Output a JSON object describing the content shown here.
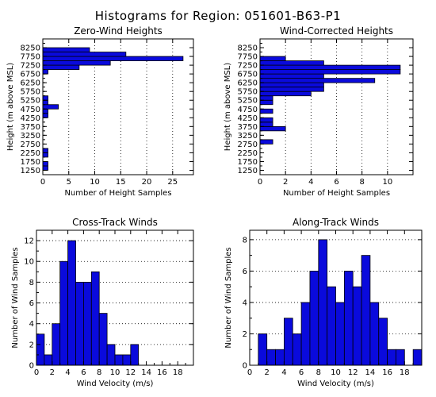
{
  "figure_title": "Histograms for Region: 051601-B63-P1",
  "colors": {
    "bar_fill": "#0a0adc",
    "bar_edge": "#000000",
    "grid": "#000000"
  },
  "chart_data": [
    {
      "type": "bar",
      "orientation": "horizontal",
      "title": "Zero-Wind Heights",
      "xlabel": "Number of Height Samples",
      "ylabel": "Height (m above MSL)",
      "xlim": [
        0,
        29
      ],
      "ylim": [
        1000,
        8750
      ],
      "xticks": [
        0,
        5,
        10,
        15,
        20,
        25
      ],
      "yticks": [
        1250,
        1750,
        2250,
        2750,
        3250,
        3750,
        4250,
        4750,
        5250,
        5750,
        6250,
        6750,
        7250,
        7750,
        8250
      ],
      "bin_width": 250,
      "bins": [
        {
          "y": 1250,
          "value": 1
        },
        {
          "y": 1500,
          "value": 1
        },
        {
          "y": 2000,
          "value": 1
        },
        {
          "y": 2250,
          "value": 1
        },
        {
          "y": 4250,
          "value": 1
        },
        {
          "y": 4500,
          "value": 1
        },
        {
          "y": 4750,
          "value": 3
        },
        {
          "y": 5000,
          "value": 1
        },
        {
          "y": 5250,
          "value": 1
        },
        {
          "y": 6750,
          "value": 1
        },
        {
          "y": 7000,
          "value": 7
        },
        {
          "y": 7250,
          "value": 13
        },
        {
          "y": 7500,
          "value": 27
        },
        {
          "y": 7750,
          "value": 16
        },
        {
          "y": 8000,
          "value": 9
        }
      ],
      "grid": "vertical dotted"
    },
    {
      "type": "bar",
      "orientation": "horizontal",
      "title": "Wind-Corrected Heights",
      "xlabel": "Number of Height Samples",
      "ylabel": "Height (m above MSL)",
      "xlim": [
        0,
        12
      ],
      "ylim": [
        1000,
        8750
      ],
      "xticks": [
        0,
        2,
        4,
        6,
        8,
        10
      ],
      "yticks": [
        1250,
        1750,
        2250,
        2750,
        3250,
        3750,
        4250,
        4750,
        5250,
        5750,
        6250,
        6750,
        7250,
        7750,
        8250
      ],
      "bin_width": 250,
      "bins": [
        {
          "y": 2750,
          "value": 1
        },
        {
          "y": 3500,
          "value": 2
        },
        {
          "y": 3750,
          "value": 1
        },
        {
          "y": 4000,
          "value": 1
        },
        {
          "y": 4500,
          "value": 1
        },
        {
          "y": 5000,
          "value": 1
        },
        {
          "y": 5250,
          "value": 1
        },
        {
          "y": 5500,
          "value": 4
        },
        {
          "y": 5750,
          "value": 5
        },
        {
          "y": 6000,
          "value": 5
        },
        {
          "y": 6250,
          "value": 9
        },
        {
          "y": 6500,
          "value": 5
        },
        {
          "y": 6750,
          "value": 11
        },
        {
          "y": 7000,
          "value": 11
        },
        {
          "y": 7250,
          "value": 5
        },
        {
          "y": 7500,
          "value": 2
        }
      ],
      "grid": "vertical dotted"
    },
    {
      "type": "bar",
      "orientation": "vertical",
      "title": "Cross-Track Winds",
      "xlabel": "Wind Velocity (m/s)",
      "ylabel": "Number of Wind Samples",
      "xlim": [
        0,
        20
      ],
      "ylim": [
        0,
        13
      ],
      "xticks": [
        0,
        2,
        4,
        6,
        8,
        10,
        12,
        14,
        16,
        18
      ],
      "yticks": [
        0,
        2,
        4,
        6,
        8,
        10,
        12
      ],
      "bin_width": 1,
      "bins": [
        {
          "x": 0,
          "value": 3
        },
        {
          "x": 1,
          "value": 1
        },
        {
          "x": 2,
          "value": 4
        },
        {
          "x": 3,
          "value": 10
        },
        {
          "x": 4,
          "value": 12
        },
        {
          "x": 5,
          "value": 8
        },
        {
          "x": 6,
          "value": 8
        },
        {
          "x": 7,
          "value": 9
        },
        {
          "x": 8,
          "value": 5
        },
        {
          "x": 9,
          "value": 2
        },
        {
          "x": 10,
          "value": 1
        },
        {
          "x": 11,
          "value": 1
        },
        {
          "x": 12,
          "value": 2
        }
      ],
      "grid": "horizontal dotted"
    },
    {
      "type": "bar",
      "orientation": "vertical",
      "title": "Along-Track Winds",
      "xlabel": "Wind Velocity (m/s)",
      "ylabel": "Number of Wind Samples",
      "xlim": [
        0,
        20
      ],
      "ylim": [
        0,
        8.6
      ],
      "xticks": [
        0,
        2,
        4,
        6,
        8,
        10,
        12,
        14,
        16,
        18
      ],
      "yticks": [
        0,
        2,
        4,
        6,
        8
      ],
      "bin_width": 1,
      "bins": [
        {
          "x": 1,
          "value": 2
        },
        {
          "x": 2,
          "value": 1
        },
        {
          "x": 3,
          "value": 1
        },
        {
          "x": 4,
          "value": 3
        },
        {
          "x": 5,
          "value": 2
        },
        {
          "x": 6,
          "value": 4
        },
        {
          "x": 7,
          "value": 6
        },
        {
          "x": 8,
          "value": 8
        },
        {
          "x": 9,
          "value": 5
        },
        {
          "x": 10,
          "value": 4
        },
        {
          "x": 11,
          "value": 6
        },
        {
          "x": 12,
          "value": 5
        },
        {
          "x": 13,
          "value": 7
        },
        {
          "x": 14,
          "value": 4
        },
        {
          "x": 15,
          "value": 3
        },
        {
          "x": 16,
          "value": 1
        },
        {
          "x": 17,
          "value": 1
        },
        {
          "x": 19,
          "value": 1
        }
      ],
      "grid": "horizontal dotted"
    }
  ]
}
